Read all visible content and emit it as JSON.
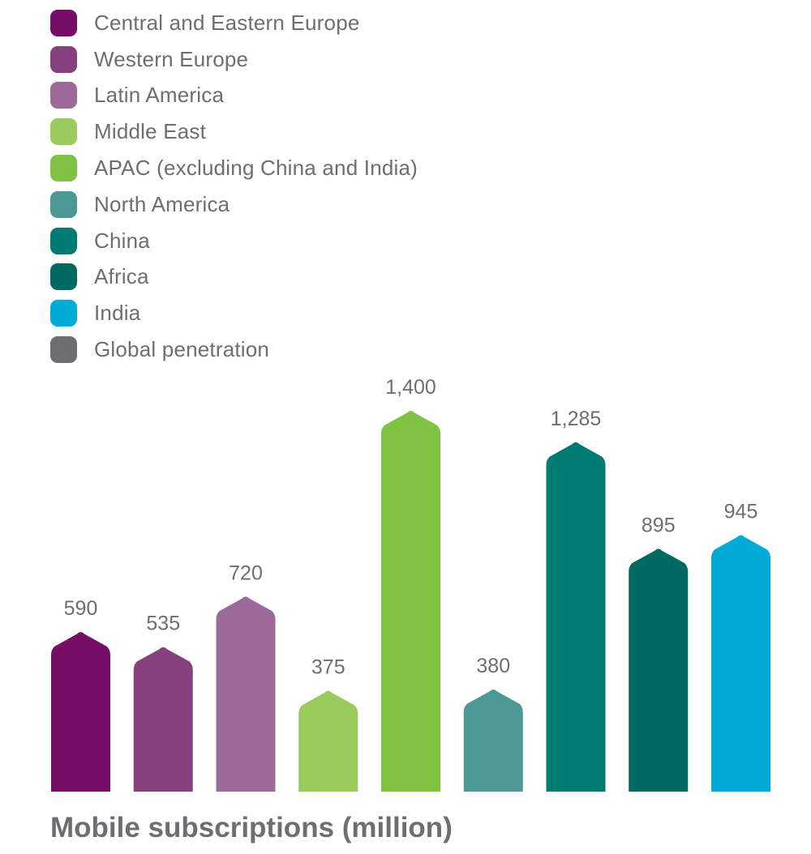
{
  "chart_data": {
    "type": "bar",
    "title": "Mobile subscriptions (million)",
    "xlabel": "",
    "ylabel": "",
    "ylim": [
      0,
      1400
    ],
    "grid": false,
    "legend_position": "top-left",
    "categories": [
      "Central and Eastern Europe",
      "Western Europe",
      "Latin America",
      "Middle East",
      "APAC (excluding China and India)",
      "North America",
      "China",
      "Africa",
      "India"
    ],
    "values": [
      590,
      535,
      720,
      375,
      1400,
      380,
      1285,
      895,
      945
    ],
    "value_labels": [
      "590",
      "535",
      "720",
      "375",
      "1,400",
      "380",
      "1,285",
      "895",
      "945"
    ],
    "colors": [
      "#760d66",
      "#85407d",
      "#9d6999",
      "#9bca5e",
      "#80c242",
      "#4c9894",
      "#007b72",
      "#006a62",
      "#00acd6"
    ],
    "legend": [
      {
        "label": "Central and Eastern Europe",
        "color": "#760d66"
      },
      {
        "label": "Western Europe",
        "color": "#85407d"
      },
      {
        "label": "Latin America",
        "color": "#9d6999"
      },
      {
        "label": "Middle East",
        "color": "#9bca5e"
      },
      {
        "label": "APAC (excluding China and India)",
        "color": "#80c242"
      },
      {
        "label": "North America",
        "color": "#4c9894"
      },
      {
        "label": "China",
        "color": "#007b72"
      },
      {
        "label": "Africa",
        "color": "#006a62"
      },
      {
        "label": "India",
        "color": "#00acd6"
      },
      {
        "label": "Global penetration",
        "color": "#6d6e71"
      }
    ],
    "label_color": "#6d6e71"
  }
}
